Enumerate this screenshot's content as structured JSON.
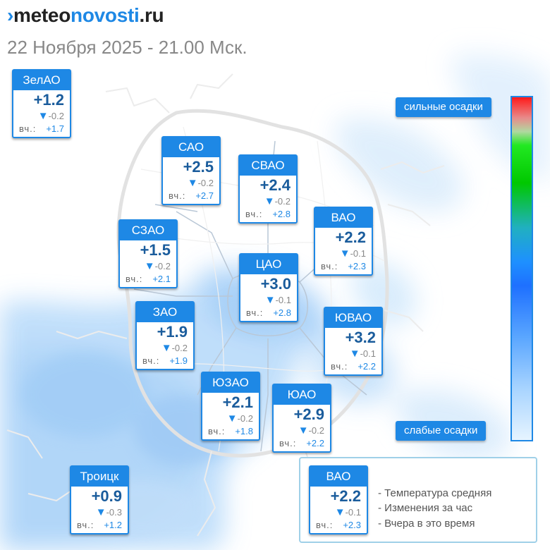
{
  "header": {
    "logo_mark": "›",
    "logo_part1": "meteo",
    "logo_part2": "novosti",
    "logo_part3": ".ru",
    "date": "22 Ноября 2025 - 21.00 Мск."
  },
  "districts": [
    {
      "id": "zelao",
      "name": "ЗелАО",
      "temp": "+1.2",
      "change": "-0.2",
      "yesterday_label": "вч.:",
      "yesterday": "+1.7"
    },
    {
      "id": "sao",
      "name": "САО",
      "temp": "+2.5",
      "change": "-0.2",
      "yesterday_label": "вч.:",
      "yesterday": "+2.7"
    },
    {
      "id": "svao",
      "name": "СВАО",
      "temp": "+2.4",
      "change": "-0.2",
      "yesterday_label": "вч.:",
      "yesterday": "+2.8"
    },
    {
      "id": "vao",
      "name": "ВАО",
      "temp": "+2.2",
      "change": "-0.1",
      "yesterday_label": "вч.:",
      "yesterday": "+2.3"
    },
    {
      "id": "szao",
      "name": "СЗАО",
      "temp": "+1.5",
      "change": "-0.2",
      "yesterday_label": "вч.:",
      "yesterday": "+2.1"
    },
    {
      "id": "cao",
      "name": "ЦАО",
      "temp": "+3.0",
      "change": "-0.1",
      "yesterday_label": "вч.:",
      "yesterday": "+2.8"
    },
    {
      "id": "zao",
      "name": "ЗАО",
      "temp": "+1.9",
      "change": "-0.2",
      "yesterday_label": "вч.:",
      "yesterday": "+1.9"
    },
    {
      "id": "yuvao",
      "name": "ЮВАО",
      "temp": "+3.2",
      "change": "-0.1",
      "yesterday_label": "вч.:",
      "yesterday": "+2.2"
    },
    {
      "id": "yuzao",
      "name": "ЮЗАО",
      "temp": "+2.1",
      "change": "-0.2",
      "yesterday_label": "вч.:",
      "yesterday": "+1.8"
    },
    {
      "id": "yuao",
      "name": "ЮАО",
      "temp": "+2.9",
      "change": "-0.2",
      "yesterday_label": "вч.:",
      "yesterday": "+2.2"
    },
    {
      "id": "troitsk",
      "name": "Троицк",
      "temp": "+0.9",
      "change": "-0.3",
      "yesterday_label": "вч.:",
      "yesterday": "+1.2"
    }
  ],
  "scale": {
    "top_label": "сильные осадки",
    "bottom_label": "слабые осадки"
  },
  "legend": {
    "example": {
      "name": "ВАО",
      "temp": "+2.2",
      "change": "-0.1",
      "yesterday_label": "вч.:",
      "yesterday": "+2.3"
    },
    "line1": "- Температура средняя",
    "line2": "- Изменения за час",
    "line3": "- Вчера в это время"
  },
  "colors": {
    "accent": "#1e88e5",
    "temp_text": "#1a5c9c",
    "precip_light": "#cfe6fb"
  }
}
